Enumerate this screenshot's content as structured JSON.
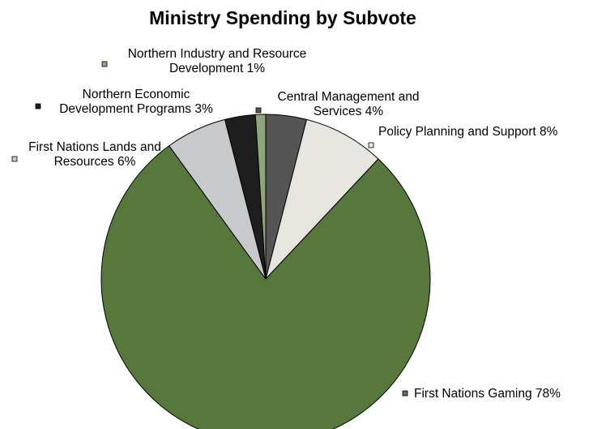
{
  "chart_data": {
    "type": "pie",
    "title": "Ministry Spending by Subvote",
    "slices": [
      {
        "label_lines": [
          "Central Management and",
          "Services  4%"
        ],
        "value": 4,
        "color": "#555555"
      },
      {
        "label_lines": [
          "Policy Planning and Support 8%"
        ],
        "value": 8,
        "color": "#e6e6de"
      },
      {
        "label_lines": [
          "First Nations Gaming 78%"
        ],
        "value": 78,
        "color": "#56783a"
      },
      {
        "label_lines": [
          "First Nations Lands and",
          "Resources 6%"
        ],
        "value": 6,
        "color": "#c8c9cb"
      },
      {
        "label_lines": [
          "Northern Economic",
          "Development Programs 3%"
        ],
        "value": 3,
        "color": "#1e1e1e"
      },
      {
        "label_lines": [
          "Northern Industry and Resource",
          "Development 1%"
        ],
        "value": 1,
        "color": "#8da778"
      }
    ],
    "legend": "labels beside slices"
  }
}
